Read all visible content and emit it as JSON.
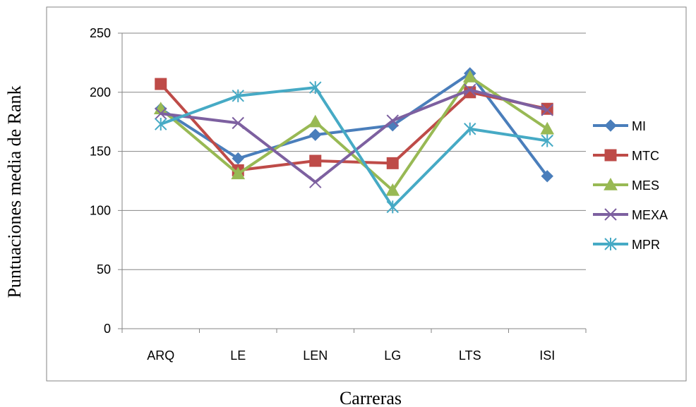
{
  "chart_data": {
    "type": "line",
    "title": "",
    "xlabel": "Carreras",
    "ylabel": "Puntuaciones media de Rank",
    "categories": [
      "ARQ",
      "LE",
      "LEN",
      "LG",
      "LTS",
      "ISI"
    ],
    "ylim": [
      0,
      250
    ],
    "yticks": [
      0,
      50,
      100,
      150,
      200,
      250
    ],
    "grid": true,
    "legend_position": "right",
    "series": [
      {
        "name": "MI",
        "color": "#4A7EBB",
        "marker": "diamond",
        "values": [
          186,
          144,
          164,
          172,
          216,
          129
        ]
      },
      {
        "name": "MTC",
        "color": "#BE4B48",
        "marker": "square",
        "values": [
          207,
          134,
          142,
          140,
          200,
          186
        ]
      },
      {
        "name": "MES",
        "color": "#98B954",
        "marker": "triangle",
        "values": [
          186,
          131,
          175,
          117,
          213,
          169
        ]
      },
      {
        "name": "MEXA",
        "color": "#7D60A0",
        "marker": "x",
        "values": [
          182,
          174,
          124,
          176,
          202,
          185
        ]
      },
      {
        "name": "MPR",
        "color": "#46AAC5",
        "marker": "star",
        "values": [
          173,
          197,
          204,
          103,
          169,
          159
        ]
      }
    ]
  }
}
